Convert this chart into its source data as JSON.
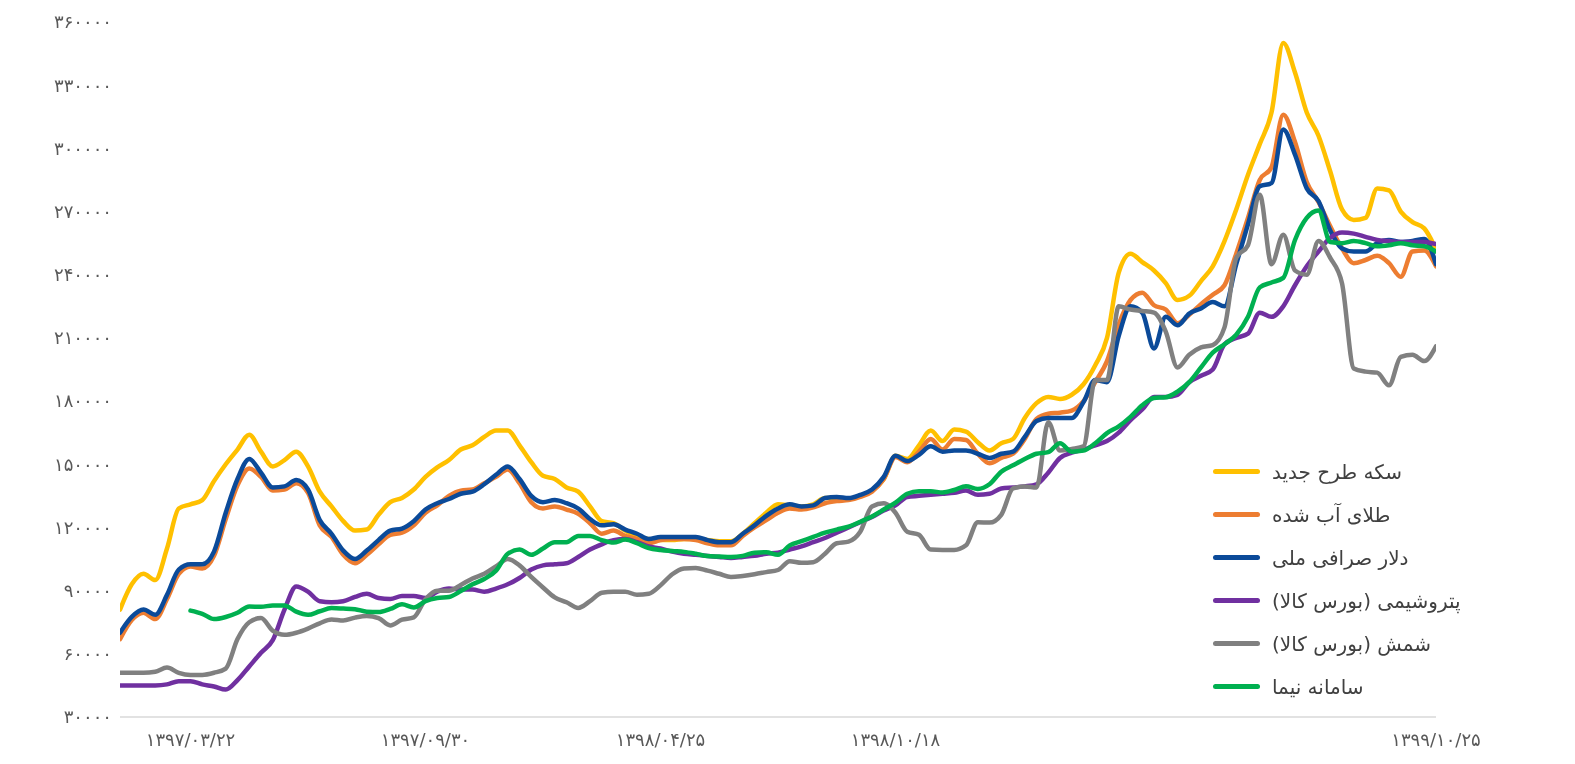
{
  "chart_data": {
    "type": "line",
    "categories": [
      null,
      null,
      null,
      null,
      null,
      null,
      "۱۳۹۷/۰۳/۲۲",
      null,
      null,
      null,
      null,
      null,
      null,
      null,
      null,
      null,
      null,
      null,
      null,
      null,
      null,
      null,
      null,
      null,
      null,
      null,
      "۱۳۹۷/۰۹/۳۰",
      null,
      null,
      null,
      null,
      null,
      null,
      null,
      null,
      null,
      null,
      null,
      null,
      null,
      null,
      null,
      null,
      null,
      null,
      null,
      "۱۳۹۸/۰۴/۲۵",
      null,
      null,
      null,
      null,
      null,
      null,
      null,
      null,
      null,
      null,
      null,
      null,
      null,
      null,
      null,
      null,
      null,
      null,
      null,
      "۱۳۹۸/۱۰/۱۸",
      null,
      null,
      null,
      null,
      null,
      null,
      null,
      null,
      null,
      null,
      null,
      null,
      null,
      null,
      null,
      null,
      null,
      null,
      null,
      null,
      null,
      null,
      null,
      null,
      null,
      null,
      null,
      null,
      null,
      null,
      null,
      null,
      null,
      null,
      null,
      null,
      null,
      null,
      null,
      null,
      null,
      null,
      null,
      null,
      null,
      "۱۳۹۹/۱۰/۲۵"
    ],
    "series": [
      {
        "name": "سکه طرح جدید",
        "color": "#ffc000",
        "values": [
          81000,
          93000,
          98000,
          95000,
          110000,
          129000,
          131000,
          133000,
          142000,
          150000,
          157000,
          164000,
          156000,
          149000,
          152000,
          156000,
          149000,
          137000,
          130000,
          123000,
          118500,
          119000,
          126000,
          132000,
          134000,
          138000,
          144000,
          148500,
          152000,
          157000,
          159000,
          163000,
          166000,
          166000,
          159000,
          151000,
          144500,
          143000,
          139000,
          137000,
          130000,
          123000,
          122000,
          118500,
          115500,
          114500,
          114000,
          114000,
          114500,
          114500,
          114000,
          113500,
          113500,
          117000,
          122000,
          127000,
          131000,
          130500,
          130000,
          131000,
          134000,
          134000,
          133500,
          135000,
          137500,
          143000,
          154000,
          152500,
          159000,
          166000,
          161000,
          166500,
          165500,
          160500,
          156500,
          160000,
          162000,
          172000,
          179000,
          182000,
          181000,
          183000,
          188000,
          197000,
          210000,
          241000,
          250000,
          246000,
          242000,
          236000,
          228000,
          230000,
          237000,
          244000,
          256000,
          271000,
          287500,
          302000,
          317000,
          350000,
          336000,
          317000,
          306000,
          289000,
          271000,
          266000,
          267000,
          281000,
          280000,
          270000,
          265000,
          262000,
          252000
        ]
      },
      {
        "name": "طلای آب شده",
        "color": "#ed7d31",
        "values": [
          67000,
          76000,
          79500,
          76500,
          86000,
          98000,
          101500,
          100500,
          106500,
          124000,
          140000,
          148000,
          144000,
          137500,
          138000,
          141000,
          136500,
          121000,
          115500,
          107000,
          103000,
          107000,
          112000,
          116500,
          117500,
          121000,
          127000,
          130500,
          135000,
          137500,
          138000,
          141000,
          144000,
          147500,
          141000,
          132000,
          129000,
          130000,
          128500,
          126500,
          122000,
          117000,
          118500,
          116000,
          114500,
          112500,
          114000,
          114500,
          114500,
          114000,
          112500,
          111500,
          111500,
          116000,
          120000,
          123500,
          127000,
          129000,
          128500,
          129500,
          131500,
          132500,
          133000,
          134500,
          137000,
          143000,
          153500,
          151000,
          156000,
          162000,
          157000,
          162000,
          161500,
          155000,
          150500,
          153000,
          155000,
          162000,
          171500,
          174000,
          174500,
          175500,
          180000,
          189000,
          199000,
          216500,
          228000,
          231500,
          225500,
          223500,
          217000,
          221000,
          226000,
          230500,
          235000,
          250000,
          267000,
          285000,
          291000,
          316000,
          303000,
          284000,
          274500,
          263000,
          252500,
          245500,
          247000,
          249000,
          245500,
          239000,
          251000,
          251500,
          244000
        ]
      },
      {
        "name": "دلار صرافی ملی",
        "color": "#0b4a99",
        "values": [
          70000,
          77500,
          81000,
          78500,
          88000,
          100000,
          102500,
          102500,
          108500,
          127000,
          143000,
          152500,
          146000,
          139000,
          139500,
          142500,
          138000,
          123500,
          117000,
          109000,
          105000,
          109000,
          114000,
          118500,
          119500,
          123000,
          128500,
          131500,
          133500,
          136000,
          137000,
          140500,
          145000,
          149000,
          143000,
          135000,
          132000,
          133000,
          131500,
          129000,
          124000,
          121000,
          121500,
          119000,
          117000,
          114500,
          115500,
          115500,
          115500,
          115500,
          114000,
          113000,
          113000,
          117000,
          121000,
          125500,
          129000,
          131000,
          130000,
          130500,
          134000,
          134500,
          134000,
          135500,
          138000,
          144000,
          154000,
          151500,
          154500,
          158500,
          156000,
          156500,
          156500,
          155000,
          153000,
          155000,
          156000,
          163000,
          170500,
          172000,
          172000,
          172000,
          179500,
          190000,
          189000,
          211000,
          225000,
          222000,
          205000,
          220000,
          216000,
          221500,
          224000,
          227000,
          225000,
          245000,
          264000,
          282000,
          283500,
          309000,
          297000,
          281000,
          275000,
          261000,
          252500,
          251000,
          251000,
          255000,
          256500,
          255500,
          256000,
          257000,
          245000
        ]
      },
      {
        "name": "پتروشیمی (بورس کالا)",
        "color": "#7030a0",
        "values": [
          45000,
          45000,
          45000,
          45000,
          45500,
          47000,
          47000,
          45500,
          44500,
          43000,
          47500,
          54000,
          60500,
          66500,
          81000,
          92000,
          89500,
          85000,
          84500,
          85000,
          87000,
          88500,
          86500,
          86000,
          87500,
          87500,
          86500,
          89500,
          91000,
          90500,
          90500,
          89500,
          91000,
          93000,
          96000,
          100000,
          102000,
          102500,
          103000,
          106000,
          109500,
          112000,
          114000,
          114500,
          113000,
          111000,
          110000,
          108500,
          107500,
          107000,
          106500,
          106000,
          105500,
          106000,
          106500,
          107500,
          108000,
          109500,
          111000,
          113000,
          115000,
          117500,
          120000,
          122500,
          125000,
          128000,
          130500,
          134500,
          135000,
          135500,
          136000,
          136500,
          137500,
          135500,
          136000,
          138500,
          139000,
          139500,
          140500,
          146000,
          153000,
          155500,
          157000,
          159000,
          161000,
          165000,
          171000,
          176000,
          182000,
          182000,
          183000,
          189000,
          192000,
          195000,
          207000,
          210000,
          212000,
          222000,
          220000,
          225000,
          235000,
          244000,
          251000,
          257500,
          260000,
          259500,
          258000,
          256500,
          256000,
          255500,
          255500,
          255500,
          254500
        ]
      },
      {
        "name": "شمش (بورس کالا)",
        "color": "#808080",
        "values": [
          51000,
          51000,
          51000,
          51500,
          53500,
          51000,
          50000,
          50000,
          51000,
          53000,
          67000,
          75000,
          77000,
          71000,
          69000,
          70000,
          72000,
          74500,
          76300,
          75800,
          77200,
          78000,
          77000,
          73500,
          76200,
          77300,
          85900,
          90000,
          90000,
          92700,
          95800,
          98000,
          101500,
          105000,
          102000,
          96500,
          91500,
          86800,
          84500,
          81800,
          85000,
          89000,
          89500,
          89500,
          88000,
          88500,
          92500,
          97800,
          100500,
          100800,
          99500,
          98000,
          96500,
          97000,
          97800,
          98800,
          99800,
          104000,
          103200,
          103500,
          107500,
          112500,
          113300,
          118000,
          130000,
          131500,
          127000,
          118000,
          116500,
          109500,
          109300,
          109300,
          111500,
          122500,
          122300,
          126000,
          138500,
          139500,
          139000,
          170000,
          156500,
          157300,
          158500,
          190000,
          190000,
          225000,
          223500,
          222800,
          222000,
          213000,
          196000,
          202000,
          205500,
          206600,
          215000,
          248000,
          254000,
          278000,
          245000,
          259000,
          242000,
          240000,
          256000,
          248000,
          236000,
          195500,
          194000,
          193500,
          187500,
          201000,
          202000,
          199000,
          206000
        ]
      },
      {
        "name": "سامانه نیما",
        "color": "#00b050",
        "values": [
          null,
          null,
          null,
          null,
          null,
          null,
          80500,
          79000,
          76500,
          77500,
          79500,
          82500,
          82300,
          83000,
          83000,
          80000,
          78500,
          80200,
          81700,
          81500,
          81200,
          80000,
          79800,
          81300,
          83500,
          82000,
          85000,
          86500,
          87000,
          89800,
          93000,
          95500,
          99500,
          107500,
          109500,
          107000,
          110000,
          113000,
          113000,
          116000,
          116000,
          114000,
          112800,
          114300,
          112500,
          110200,
          109300,
          108800,
          108400,
          107500,
          106400,
          106200,
          106000,
          106500,
          108000,
          108200,
          107000,
          111500,
          113500,
          115500,
          117500,
          119000,
          120400,
          122700,
          125200,
          128500,
          131800,
          136000,
          137200,
          137200,
          136600,
          137800,
          139600,
          138300,
          140500,
          146500,
          149500,
          152500,
          155000,
          155800,
          160000,
          156000,
          156500,
          160000,
          164800,
          168000,
          172500,
          178000,
          181500,
          181800,
          184500,
          189000,
          196000,
          203000,
          207000,
          211500,
          220000,
          234000,
          236300,
          238500,
          256500,
          267000,
          270500,
          255500,
          255000,
          256000,
          255000,
          253500,
          254000,
          255000,
          254000,
          253500,
          251000
        ]
      }
    ],
    "ylim": [
      30000,
      360000
    ],
    "yticks": [
      {
        "value": 30000,
        "label": "۳۰۰۰۰"
      },
      {
        "value": 60000,
        "label": "۶۰۰۰۰"
      },
      {
        "value": 90000,
        "label": "۹۰۰۰۰"
      },
      {
        "value": 120000,
        "label": "۱۲۰۰۰۰"
      },
      {
        "value": 150000,
        "label": "۱۵۰۰۰۰"
      },
      {
        "value": 180000,
        "label": "۱۸۰۰۰۰"
      },
      {
        "value": 210000,
        "label": "۲۱۰۰۰۰"
      },
      {
        "value": 240000,
        "label": "۲۴۰۰۰۰"
      },
      {
        "value": 270000,
        "label": "۲۷۰۰۰۰"
      },
      {
        "value": 300000,
        "label": "۳۰۰۰۰۰"
      },
      {
        "value": 330000,
        "label": "۳۳۰۰۰۰"
      },
      {
        "value": 360000,
        "label": "۳۶۰۰۰۰"
      }
    ],
    "legend": "bottom right",
    "marker": "none",
    "line_style": "solid"
  }
}
